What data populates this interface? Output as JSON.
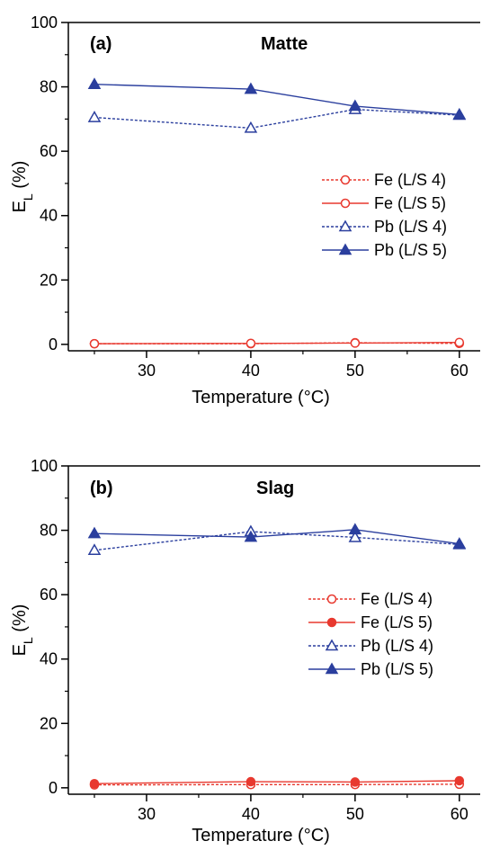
{
  "chart_data": [
    {
      "type": "line",
      "panel_label": "(a)",
      "title": "Matte",
      "xlabel": "Temperature (°C)",
      "ylabel_main": "E",
      "ylabel_sub": "L",
      "ylabel_unit": " (%)",
      "xlim": [
        22.5,
        62
      ],
      "ylim": [
        -2,
        100
      ],
      "xticks": [
        30,
        40,
        50,
        60
      ],
      "yticks": [
        0,
        20,
        40,
        60,
        80,
        100
      ],
      "x": [
        25,
        40,
        50,
        60
      ],
      "legend_position": "center-right",
      "series": [
        {
          "name": "Fe (L/S 4)",
          "values": [
            0.2,
            0.2,
            0.5,
            0.3
          ],
          "color": "#e8392f",
          "dashed": true,
          "marker": "circle",
          "filled": false
        },
        {
          "name": "Fe (L/S 5)",
          "values": [
            0.2,
            0.3,
            0.4,
            0.6
          ],
          "color": "#e8392f",
          "dashed": false,
          "marker": "circle",
          "filled": false
        },
        {
          "name": "Pb (L/S 4)",
          "values": [
            70.5,
            67.2,
            73.0,
            71.2
          ],
          "color": "#2b3f9e",
          "dashed": true,
          "marker": "triangle",
          "filled": false
        },
        {
          "name": "Pb (L/S 5)",
          "values": [
            80.8,
            79.3,
            74.0,
            71.4
          ],
          "color": "#2b3f9e",
          "dashed": false,
          "marker": "triangle",
          "filled": true
        }
      ]
    },
    {
      "type": "line",
      "panel_label": "(b)",
      "title": "Slag",
      "xlabel": "Temperature (°C)",
      "ylabel_main": "E",
      "ylabel_sub": "L",
      "ylabel_unit": " (%)",
      "xlim": [
        22.5,
        62
      ],
      "ylim": [
        -2,
        100
      ],
      "xticks": [
        30,
        40,
        50,
        60
      ],
      "yticks": [
        0,
        20,
        40,
        60,
        80,
        100
      ],
      "x": [
        25,
        40,
        50,
        60
      ],
      "legend_position": "center-right",
      "series": [
        {
          "name": "Fe (L/S 4)",
          "values": [
            0.9,
            1.0,
            1.0,
            1.1
          ],
          "color": "#e8392f",
          "dashed": true,
          "marker": "circle",
          "filled": false
        },
        {
          "name": "Fe (L/S 5)",
          "values": [
            1.3,
            1.9,
            1.8,
            2.2
          ],
          "color": "#e8392f",
          "dashed": false,
          "marker": "circle",
          "filled": true
        },
        {
          "name": "Pb (L/S 4)",
          "values": [
            73.8,
            79.6,
            77.8,
            75.6
          ],
          "color": "#2b3f9e",
          "dashed": true,
          "marker": "triangle",
          "filled": false
        },
        {
          "name": "Pb (L/S 5)",
          "values": [
            79.0,
            77.9,
            80.2,
            75.8
          ],
          "color": "#2b3f9e",
          "dashed": false,
          "marker": "triangle",
          "filled": true
        }
      ]
    }
  ]
}
